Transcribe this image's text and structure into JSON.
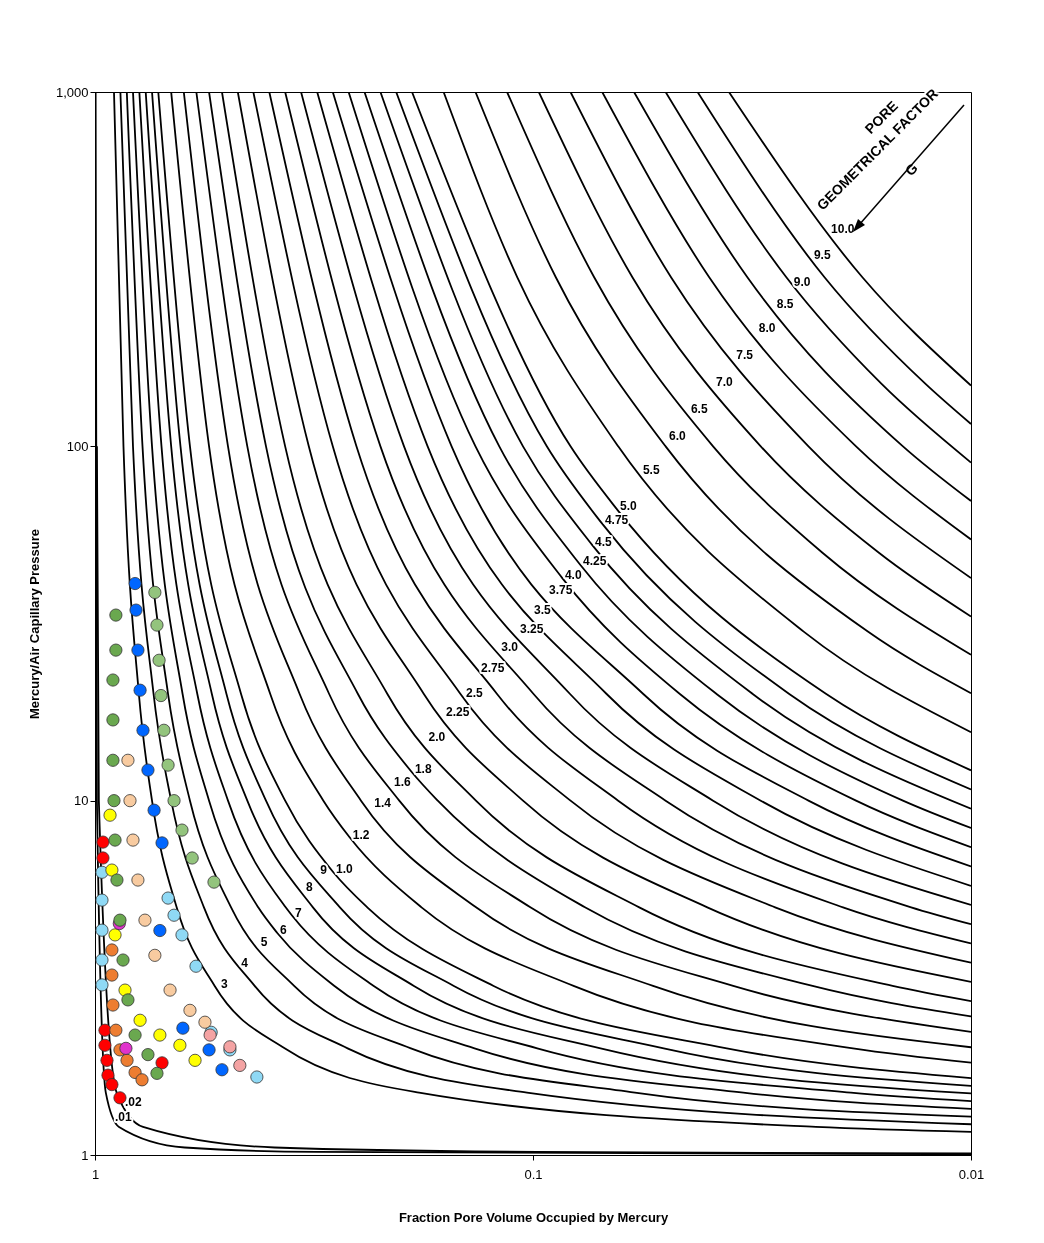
{
  "chart_data": {
    "type": "scatter",
    "xlabel": "Fraction Pore Volume Occupied by Mercury",
    "ylabel": "Mercury/Air Capillary Pressure",
    "log": "xy",
    "xlim": [
      1,
      0.01
    ],
    "xticks": [
      1,
      0.1,
      0.01
    ],
    "ylim": [
      1,
      1000
    ],
    "yticks": [
      1,
      10,
      100,
      {
        "value": 1000,
        "label": "1,000"
      }
    ],
    "line_style": "solid",
    "series": [
      {
        "type": "line",
        "color": "#000000",
        "x": [
          0.9967,
          0.99,
          0.9448,
          0.8813,
          0.624,
          0.3125,
          0.01
        ],
        "values": [
          1000,
          10,
          1.5,
          1.2,
          1.05,
          1.02,
          1.005
        ]
      },
      {
        "type": "line",
        "color": "#000000",
        "x": [
          0.99,
          0.98,
          0.8926,
          0.7768,
          0.389,
          0.0977,
          0.01
        ],
        "values": [
          100,
          10,
          1.5,
          1.2,
          1.05,
          1.02,
          1.01
        ]
      },
      {
        "type": "line",
        "color": "#000000",
        "x": [
          0.905,
          0.861,
          0.794,
          0.741,
          0.651,
          0.533,
          0.369,
          0.182,
          0.0226,
          0.01
        ],
        "values": [
          1000,
          100,
          20,
          10,
          5,
          3,
          2,
          1.5,
          1.2,
          1.162
        ]
      },
      {
        "type": "line",
        "color": "#000000",
        "x": [
          0.875,
          0.819,
          0.735,
          0.67,
          0.564,
          0.432,
          0.265,
          0.1032,
          0.01
        ],
        "values": [
          1000,
          100,
          20,
          10,
          5,
          3,
          2,
          1.5,
          1.221
        ]
      },
      {
        "type": "line",
        "color": "#000000",
        "x": [
          0.846,
          0.779,
          0.681,
          0.607,
          0.489,
          0.351,
          0.19,
          0.0585,
          0.01
        ],
        "values": [
          1000,
          100,
          20,
          10,
          5,
          3,
          2,
          1.5,
          1.284
        ]
      },
      {
        "type": "line",
        "color": "#000000",
        "x": [
          0.819,
          0.741,
          0.631,
          0.549,
          0.424,
          0.384,
          0.284,
          0.136,
          0.0331,
          0.01
        ],
        "values": [
          1000,
          100,
          20,
          10,
          5,
          4.24,
          3,
          2,
          1.5,
          1.35
        ]
      },
      {
        "type": "line",
        "color": "#000000",
        "x": [
          0.792,
          0.705,
          0.584,
          0.497,
          0.367,
          0.355,
          0.231,
          0.0978,
          0.0188,
          0.01
        ],
        "values": [
          1000,
          100,
          20,
          10,
          5,
          4.74,
          3,
          2,
          1.5,
          1.419
        ]
      },
      {
        "type": "line",
        "color": "#000000",
        "x": [
          0.766,
          0.67,
          0.541,
          0.449,
          0.318,
          0.187,
          0.0701,
          0.01
        ],
        "values": [
          1000,
          100,
          20,
          10,
          5,
          3,
          2,
          1.492
        ]
      },
      {
        "type": "line",
        "color": "#000000",
        "x": [
          0.741,
          0.638,
          0.501,
          0.407,
          0.276,
          0.1516,
          0.0503,
          0.01
        ],
        "values": [
          1000,
          100,
          20,
          10,
          5,
          3,
          2,
          1.568
        ]
      },
      {
        "type": "line",
        "color": "#000000",
        "x": [
          0.717,
          0.607,
          0.464,
          0.368,
          0.286,
          0.239,
          0.123,
          0.0361,
          0.01
        ],
        "values": [
          1000,
          100,
          20,
          10,
          6.29,
          5,
          3,
          2,
          1.649
        ]
      },
      {
        "type": "line",
        "color": "#000000",
        "x": [
          0.67,
          0.549,
          0.398,
          0.301,
          0.262,
          0.1797,
          0.0808,
          0.0186,
          0.01
        ],
        "values": [
          1000,
          100,
          20,
          10,
          7.87,
          5,
          3,
          2,
          1.822
        ]
      },
      {
        "type": "line",
        "color": "#000000",
        "x": [
          0.627,
          0.497,
          0.341,
          0.247,
          0.1349,
          0.0532,
          0.01
        ],
        "values": [
          1000,
          100,
          20,
          10,
          5,
          3,
          2.014
        ]
      },
      {
        "type": "line",
        "color": "#000000",
        "x": [
          0.587,
          0.449,
          0.292,
          0.202,
          0.1014,
          0.0349,
          0.01
        ],
        "values": [
          1000,
          100,
          20,
          10,
          5,
          3,
          2.226
        ]
      },
      {
        "type": "line",
        "color": "#000000",
        "x": [
          0.549,
          0.407,
          0.251,
          0.189,
          0.165,
          0.0761,
          0.023,
          0.01
        ],
        "values": [
          1000,
          100,
          20,
          12.03,
          10,
          5,
          3,
          2.46
        ]
      },
      {
        "type": "line",
        "color": "#000000",
        "x": [
          0.513,
          0.368,
          0.215,
          0.135,
          0.0572,
          0.0151,
          0.01
        ],
        "values": [
          1000,
          100,
          20,
          10,
          5,
          3,
          2.718
        ]
      },
      {
        "type": "line",
        "color": "#000000",
        "x": [
          0.472,
          0.325,
          0.1775,
          0.1054,
          0.04,
          0.01
        ],
        "values": [
          1000,
          100,
          20,
          10,
          5,
          3.081
        ]
      },
      {
        "type": "line",
        "color": "#000000",
        "x": [
          0.435,
          0.2865,
          0.1464,
          0.0821,
          0.028,
          0.01
        ],
        "values": [
          1000,
          100,
          20,
          10,
          5,
          3.49
        ]
      },
      {
        "type": "line",
        "color": "#000000",
        "x": [
          0.4,
          0.253,
          0.1208,
          0.0639,
          0.0196,
          0.01
        ],
        "values": [
          1000,
          100,
          20,
          10,
          5,
          3.956
        ]
      },
      {
        "type": "line",
        "color": "#000000",
        "x": [
          0.368,
          0.223,
          0.0997,
          0.0498,
          0.0137,
          0.01
        ],
        "values": [
          1000,
          100,
          20,
          10,
          5,
          4.48
        ]
      },
      {
        "type": "line",
        "color": "#000000",
        "x": [
          0.3385,
          0.197,
          0.0823,
          0.0388,
          0.01
        ],
        "values": [
          1000,
          100,
          20,
          10,
          5.08
        ]
      },
      {
        "type": "line",
        "color": "#000000",
        "x": [
          0.311,
          0.174,
          0.0679,
          0.0302,
          0.01
        ],
        "values": [
          1000,
          100,
          20,
          10,
          5.75
        ]
      },
      {
        "type": "line",
        "color": "#000000",
        "x": [
          0.2865,
          0.1534,
          0.056,
          0.0235,
          0.01
        ],
        "values": [
          1000,
          100,
          20,
          10,
          6.52
        ]
      },
      {
        "type": "line",
        "color": "#000000",
        "x": [
          0.2636,
          0.1353,
          0.0859,
          0.0462,
          0.0183,
          0.01
        ],
        "values": [
          1000,
          100,
          42.6,
          20,
          10,
          7.39
        ]
      },
      {
        "type": "line",
        "color": "#000000",
        "x": [
          0.2425,
          0.1194,
          0.0781,
          0.0381,
          0.0143,
          0.01
        ],
        "values": [
          1000,
          100,
          46.4,
          20,
          10,
          8.37
        ]
      },
      {
        "type": "line",
        "color": "#000000",
        "x": [
          0.223,
          0.1054,
          0.0733,
          0.0315,
          0.01
        ],
        "values": [
          1000,
          100,
          52.7,
          20,
          9.49
        ]
      },
      {
        "type": "line",
        "color": "#000000",
        "x": [
          0.2053,
          0.093,
          0.0696,
          0.026,
          0.01
        ],
        "values": [
          1000,
          100,
          60.6,
          20,
          10.75
        ]
      },
      {
        "type": "line",
        "color": "#000000",
        "x": [
          0.1889,
          0.0821,
          0.0643,
          0.0214,
          0.01
        ],
        "values": [
          1000,
          100,
          66.4,
          20,
          12.18
        ]
      },
      {
        "type": "line",
        "color": "#000000",
        "x": [
          0.16,
          0.1086,
          0.0639,
          0.0241,
          0.01
        ],
        "values": [
          1000,
          300,
          100,
          30,
          15.6
        ]
      },
      {
        "type": "line",
        "color": "#000000",
        "x": [
          0.1353,
          0.0887,
          0.0498,
          0.0172,
          0.01
        ],
        "values": [
          1000,
          300,
          100,
          30,
          20.1
        ]
      },
      {
        "type": "line",
        "color": "#000000",
        "x": [
          0.1146,
          0.0725,
          0.0388,
          0.0218,
          0.01
        ],
        "values": [
          1000,
          300,
          100,
          50,
          25.8
        ]
      },
      {
        "type": "line",
        "color": "#000000",
        "x": [
          0.097,
          0.0593,
          0.0302,
          0.0162,
          0.01
        ],
        "values": [
          1000,
          300,
          100,
          50,
          33.1
        ]
      },
      {
        "type": "line",
        "color": "#000000",
        "x": [
          0.0821,
          0.0484,
          0.0235,
          0.01
        ],
        "values": [
          1000,
          300,
          100,
          42.5
        ]
      },
      {
        "type": "line",
        "color": "#000000",
        "x": [
          0.0695,
          0.0396,
          0.0183,
          0.01
        ],
        "values": [
          1000,
          300,
          100,
          54.6
        ]
      },
      {
        "type": "line",
        "color": "#000000",
        "x": [
          0.0588,
          0.0324,
          0.0143,
          0.01
        ],
        "values": [
          1000,
          300,
          100,
          70.1
        ]
      },
      {
        "type": "line",
        "color": "#000000",
        "x": [
          0.0498,
          0.0264,
          0.016,
          0.01
        ],
        "values": [
          1000,
          300,
          150,
          90
        ]
      },
      {
        "type": "line",
        "color": "#000000",
        "x": [
          0.0421,
          0.0216,
          0.0127,
          0.01
        ],
        "values": [
          1000,
          300,
          150,
          115.6
        ]
      },
      {
        "type": "line",
        "color": "#000000",
        "x": [
          0.0357,
          0.0177,
          0.01
        ],
        "values": [
          1000,
          300,
          148.4
        ]
      },
      {
        "type": "scatter",
        "marker": "circle",
        "color": "#0066ff",
        "x": [
          0.81,
          0.806,
          0.798,
          0.789,
          0.777,
          0.757,
          0.733,
          0.703,
          0.711,
          0.63,
          0.549,
          0.513
        ],
        "values": [
          41,
          34.5,
          26.6,
          20.5,
          15.8,
          12.2,
          9.4,
          7.6,
          4.3,
          2.28,
          1.98,
          1.74
        ]
      },
      {
        "type": "scatter",
        "marker": "circle",
        "color": "#93c47d",
        "x": [
          0.73,
          0.722,
          0.714,
          0.707,
          0.696,
          0.681,
          0.66,
          0.633,
          0.6,
          0.535
        ],
        "values": [
          38.7,
          31.3,
          24.9,
          19.8,
          15.8,
          12.6,
          10,
          8.26,
          6.89,
          5.89
        ]
      },
      {
        "type": "scatter",
        "marker": "circle",
        "color": "#8fd9f5",
        "x": [
          0.964,
          0.964,
          0.964,
          0.964,
          0.964,
          0.681,
          0.66,
          0.633,
          0.588,
          0.543,
          0.492,
          0.427
        ],
        "values": [
          6.28,
          5.24,
          4.31,
          3.55,
          3.02,
          5.31,
          4.75,
          4.18,
          3.41,
          2.22,
          1.98,
          1.66
        ]
      },
      {
        "type": "scatter",
        "marker": "circle",
        "color": "#f4a3a3",
        "x": [
          0.546,
          0.492,
          0.467
        ],
        "values": [
          2.18,
          2.02,
          1.79
        ]
      },
      {
        "type": "scatter",
        "marker": "circle",
        "color": "#ff0000",
        "x": [
          0.959,
          0.959,
          0.949,
          0.949,
          0.939,
          0.934,
          0.915,
          0.877,
          0.703
        ],
        "values": [
          7.64,
          6.89,
          2.25,
          2.04,
          1.85,
          1.68,
          1.58,
          1.45,
          1.82
        ]
      },
      {
        "type": "scatter",
        "marker": "circle",
        "color": "#ed7d31",
        "x": [
          0.915,
          0.915,
          0.91,
          0.896,
          0.877,
          0.845,
          0.81,
          0.781
        ],
        "values": [
          3.79,
          3.22,
          2.65,
          2.25,
          1.98,
          1.85,
          1.71,
          1.63
        ]
      },
      {
        "type": "scatter",
        "marker": "circle",
        "color": "#ffff00",
        "x": [
          0.924,
          0.915,
          0.9,
          0.854,
          0.789,
          0.711,
          0.64,
          0.591
        ],
        "values": [
          9.1,
          6.37,
          4.18,
          2.92,
          2.4,
          2.18,
          2.04,
          1.85
        ]
      },
      {
        "type": "scatter",
        "marker": "circle",
        "color": "#e033cc",
        "x": [
          0.88,
          0.85
        ],
        "values": [
          4.5,
          2.0
        ]
      },
      {
        "type": "scatter",
        "marker": "circle",
        "color": "#f8cba0",
        "x": [
          0.841,
          0.832,
          0.819,
          0.798,
          0.769,
          0.73,
          0.674,
          0.607,
          0.561
        ],
        "values": [
          13,
          10,
          7.74,
          5.97,
          4.6,
          3.66,
          2.92,
          2.56,
          2.37
        ]
      },
      {
        "type": "scatter",
        "marker": "circle",
        "color": "#6aa84f",
        "x": [
          0.896,
          0.896,
          0.91,
          0.91,
          0.91,
          0.905,
          0.9,
          0.891,
          0.877,
          0.863,
          0.841,
          0.81,
          0.757,
          0.722
        ],
        "values": [
          33.4,
          26.6,
          21.9,
          16.9,
          13,
          10,
          7.74,
          5.97,
          4.6,
          3.55,
          2.74,
          2.18,
          1.92,
          1.7
        ]
      }
    ],
    "annotations": [
      {
        "text": ".01",
        "x": 0.915,
        "y": 1.255
      },
      {
        "text": ".02",
        "x": 0.868,
        "y": 1.38
      },
      {
        "text": "3",
        "x": 0.524,
        "y": 2.98
      },
      {
        "text": "4",
        "x": 0.471,
        "y": 3.41
      },
      {
        "text": "5",
        "x": 0.425,
        "y": 3.91
      },
      {
        "text": "6",
        "x": 0.384,
        "y": 4.24
      },
      {
        "text": "7",
        "x": 0.355,
        "y": 4.74
      },
      {
        "text": "8",
        "x": 0.335,
        "y": 5.59
      },
      {
        "text": "9",
        "x": 0.311,
        "y": 6.25
      },
      {
        "text": "1.0",
        "x": 0.286,
        "y": 6.29
      },
      {
        "text": "1.2",
        "x": 0.262,
        "y": 7.87
      },
      {
        "text": "1.4",
        "x": 0.234,
        "y": 9.65
      },
      {
        "text": "1.6",
        "x": 0.211,
        "y": 11.1
      },
      {
        "text": "1.8",
        "x": 0.189,
        "y": 12.03
      },
      {
        "text": "2.0",
        "x": 0.176,
        "y": 14.8
      },
      {
        "text": "2.25",
        "x": 0.1605,
        "y": 17.5
      },
      {
        "text": "2.5",
        "x": 0.1445,
        "y": 19.8
      },
      {
        "text": "2.75",
        "x": 0.1335,
        "y": 23.2
      },
      {
        "text": "3.0",
        "x": 0.12,
        "y": 26.6
      },
      {
        "text": "3.25",
        "x": 0.1088,
        "y": 29.9
      },
      {
        "text": "3.5",
        "x": 0.101,
        "y": 33.8
      },
      {
        "text": "3.75",
        "x": 0.0934,
        "y": 38.5
      },
      {
        "text": "4.0",
        "x": 0.0859,
        "y": 42.6
      },
      {
        "text": "4.25",
        "x": 0.0781,
        "y": 46.4
      },
      {
        "text": "4.5",
        "x": 0.0733,
        "y": 52.7
      },
      {
        "text": "4.75",
        "x": 0.0696,
        "y": 60.6
      },
      {
        "text": "5.0",
        "x": 0.0643,
        "y": 66.4
      },
      {
        "text": "5.5",
        "x": 0.057,
        "y": 83.9
      },
      {
        "text": "6.0",
        "x": 0.0497,
        "y": 104.6
      },
      {
        "text": "6.5",
        "x": 0.0443,
        "y": 124.7
      },
      {
        "text": "7.0",
        "x": 0.0388,
        "y": 148.6
      },
      {
        "text": "7.5",
        "x": 0.0349,
        "y": 177
      },
      {
        "text": "8.0",
        "x": 0.031,
        "y": 211
      },
      {
        "text": "8.5",
        "x": 0.0282,
        "y": 247
      },
      {
        "text": "9.0",
        "x": 0.0258,
        "y": 286
      },
      {
        "text": "9.5",
        "x": 0.0232,
        "y": 341
      },
      {
        "text": "10.0",
        "x": 0.0212,
        "y": 402
      },
      "PORE",
      "GEOMETRICAL FACTOR",
      "G"
    ]
  }
}
